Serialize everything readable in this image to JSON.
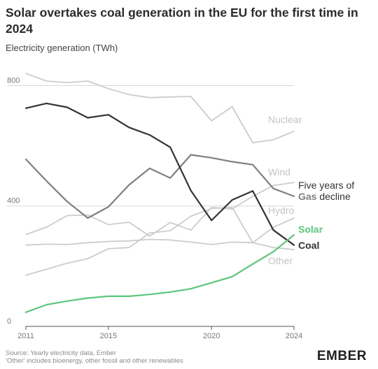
{
  "chart_data": {
    "type": "line",
    "title": "Solar overtakes coal generation in the EU for the first time in 2024",
    "subtitle": "Electricity generation (TWh)",
    "x": [
      2011,
      2012,
      2013,
      2014,
      2015,
      2016,
      2017,
      2018,
      2019,
      2020,
      2021,
      2022,
      2023,
      2024
    ],
    "xticks": [
      2011,
      2015,
      2020,
      2024
    ],
    "yticks": [
      0,
      400,
      800
    ],
    "ylim": [
      0,
      880
    ],
    "grid": true,
    "series": [
      {
        "name": "Nuclear",
        "color": "#cccccc",
        "values": [
          840,
          815,
          810,
          815,
          790,
          770,
          760,
          762,
          764,
          683,
          730,
          610,
          620,
          648
        ]
      },
      {
        "name": "Wind",
        "color": "#cccccc",
        "values": [
          305,
          330,
          368,
          370,
          338,
          346,
          300,
          345,
          320,
          395,
          390,
          432,
          468,
          478
        ]
      },
      {
        "name": "Gas",
        "color": "#7f7f7f",
        "values": [
          555,
          483,
          415,
          360,
          397,
          470,
          525,
          493,
          570,
          560,
          547,
          537,
          458,
          432
        ]
      },
      {
        "name": "Hydro",
        "color": "#cccccc",
        "values": [
          170,
          190,
          210,
          225,
          258,
          262,
          310,
          318,
          366,
          392,
          395,
          278,
          329,
          360
        ]
      },
      {
        "name": "Other",
        "color": "#cccccc",
        "values": [
          270,
          273,
          272,
          278,
          282,
          284,
          289,
          287,
          280,
          272,
          280,
          278,
          262,
          255
        ]
      },
      {
        "name": "Coal",
        "color": "#333333",
        "values": [
          725,
          741,
          728,
          693,
          703,
          661,
          636,
          595,
          451,
          352,
          420,
          450,
          320,
          270
        ]
      },
      {
        "name": "Solar",
        "color": "#5bc77b",
        "values": [
          47,
          72,
          84,
          94,
          100,
          100,
          106,
          114,
          125,
          145,
          165,
          207,
          248,
          304
        ]
      }
    ],
    "labels": {
      "nuclear": "Nuclear",
      "wind": "Wind",
      "hydro": "Hydro",
      "other": "Other",
      "solar": "Solar",
      "coal": "Coal",
      "gas_line1": "Five years of",
      "gas_bold": "Gas",
      "gas_rest": "decline"
    }
  },
  "footer": {
    "source_line1": "Source: Yearly electricity data, Ember",
    "source_line2": "'Other' includes bioenergy, other fossil and other renewables",
    "logo": "EMBER"
  }
}
